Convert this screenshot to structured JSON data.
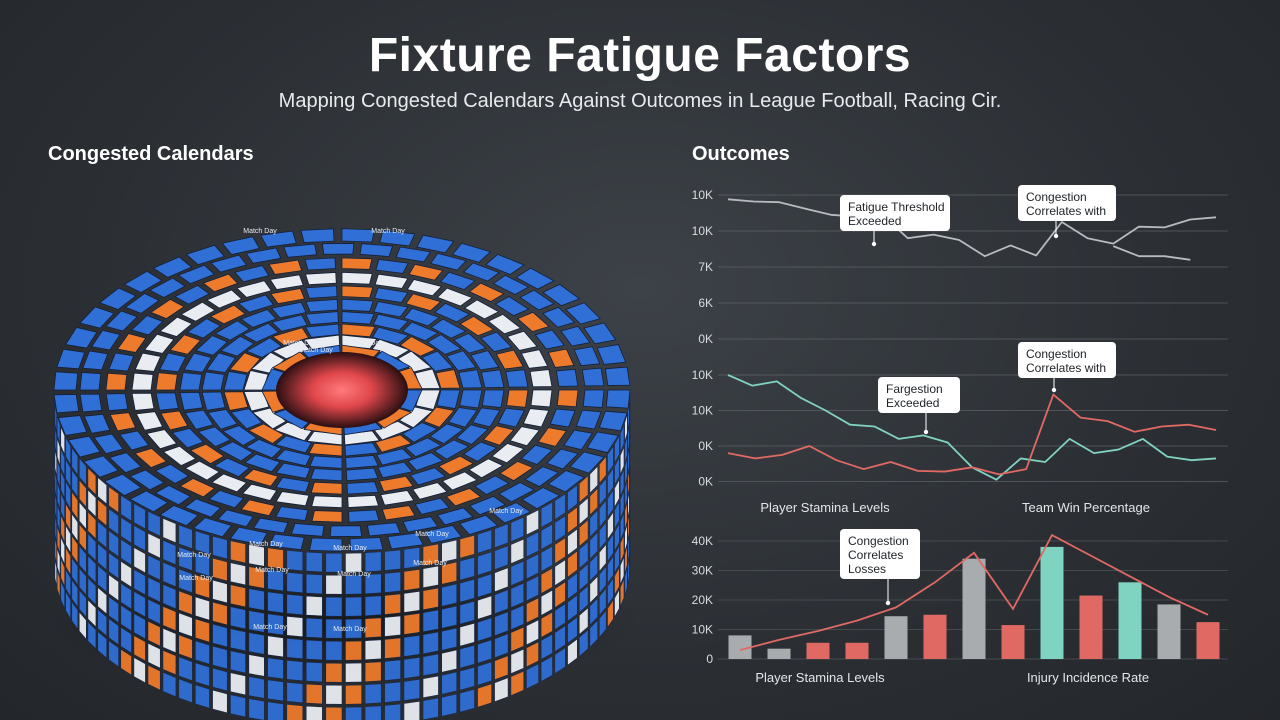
{
  "title": "Fixture Fatigue Factors",
  "subtitle": "Mapping Congested Calendars Against Outcomes in League Football, Racing Cir.",
  "left_title": "Congested Calendars",
  "right_title": "Outcomes",
  "ring_block_label": "Match Day",
  "colors": {
    "blue": "#2f6fd6",
    "orange": "#ee7a2b",
    "white": "#e9edf2",
    "teal": "#7fd3c1",
    "red": "#e06a63",
    "gray": "#a8acaf",
    "core": "#e0474b"
  },
  "chart_data": [
    {
      "type": "line",
      "yticks": [
        "10K",
        "10K",
        "7K",
        "6K",
        "0K"
      ],
      "series": [
        {
          "values": [
            0.12,
            0.18,
            0.2,
            0.38,
            0.55,
            0.6,
            0.55,
            1.2,
            1.1,
            1.25,
            1.7,
            1.4,
            1.68,
            0.75,
            1.2,
            1.35,
            0.88,
            0.9,
            0.68,
            0.62
          ]
        },
        {
          "values": [
            null,
            null,
            null,
            null,
            null,
            null,
            null,
            null,
            null,
            null,
            null,
            null,
            null,
            null,
            null,
            1.42,
            1.7,
            1.7,
            1.8,
            null
          ]
        }
      ],
      "annotations": [
        {
          "lines": [
            "Fatigue Threshold",
            "Exceeded"
          ]
        },
        {
          "lines": [
            "Congestion",
            "Correlates with"
          ]
        }
      ]
    },
    {
      "type": "line",
      "yticks": [
        "10K",
        "10K",
        "0K",
        "0K"
      ],
      "x_caption_left": "Player Stamina Levels",
      "x_caption_right": "Team Win Percentage",
      "series": [
        {
          "color_key": "teal",
          "values": [
            0.0,
            0.3,
            0.18,
            0.65,
            1.0,
            1.4,
            1.45,
            1.8,
            1.7,
            1.9,
            2.6,
            2.95,
            2.35,
            2.45,
            1.8,
            2.2,
            2.1,
            1.8,
            2.3,
            2.4,
            2.35
          ]
        },
        {
          "color_key": "red",
          "values": [
            2.2,
            2.35,
            2.25,
            2.0,
            2.4,
            2.65,
            2.45,
            2.7,
            2.72,
            2.6,
            2.8,
            2.65,
            0.55,
            1.2,
            1.3,
            1.6,
            1.45,
            1.4,
            1.55
          ]
        }
      ],
      "annotations": [
        {
          "lines": [
            "Fargestion",
            "Exceeded"
          ]
        },
        {
          "lines": [
            "Congestion",
            "Correlates with"
          ]
        }
      ]
    },
    {
      "type": "bar",
      "yticks": [
        "40K",
        "30K",
        "20K",
        "10K",
        "0"
      ],
      "ylim": [
        0,
        40000
      ],
      "x_caption_left": "Player Stamina Levels",
      "x_caption_right": "Injury Incidence Rate",
      "bars": [
        {
          "value": 8000,
          "color_key": "gray"
        },
        {
          "value": 3500,
          "color_key": "gray"
        },
        {
          "value": 5500,
          "color_key": "red"
        },
        {
          "value": 5500,
          "color_key": "red"
        },
        {
          "value": 14500,
          "color_key": "gray"
        },
        {
          "value": 15000,
          "color_key": "red"
        },
        {
          "value": 34000,
          "color_key": "gray"
        },
        {
          "value": 11500,
          "color_key": "red"
        },
        {
          "value": 38000,
          "color_key": "teal"
        },
        {
          "value": 21500,
          "color_key": "red"
        },
        {
          "value": 26000,
          "color_key": "teal"
        },
        {
          "value": 18500,
          "color_key": "gray"
        },
        {
          "value": 12500,
          "color_key": "red"
        }
      ],
      "trend_line": [
        3000,
        6500,
        9500,
        13000,
        17500,
        26000,
        36000,
        17000,
        42000,
        35000,
        28000,
        21000,
        15000
      ],
      "annotations": [
        {
          "lines": [
            "Congestion",
            "Correlates",
            "Losses"
          ]
        }
      ]
    }
  ]
}
